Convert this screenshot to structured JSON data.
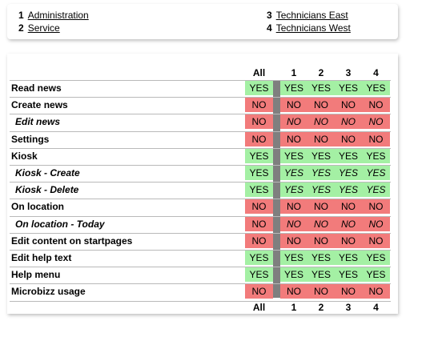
{
  "legend": [
    {
      "num": "1",
      "label": "Administration"
    },
    {
      "num": "2",
      "label": "Service"
    },
    {
      "num": "3",
      "label": "Technicians East"
    },
    {
      "num": "4",
      "label": "Technicians West"
    }
  ],
  "columns": [
    "All",
    "1",
    "2",
    "3",
    "4"
  ],
  "rows": [
    {
      "label": "Read news",
      "sub": false,
      "values": [
        "YES",
        "YES",
        "YES",
        "YES",
        "YES"
      ]
    },
    {
      "label": "Create news",
      "sub": false,
      "values": [
        "NO",
        "NO",
        "NO",
        "NO",
        "NO"
      ]
    },
    {
      "label": "Edit news",
      "sub": true,
      "values": [
        "NO",
        "NO",
        "NO",
        "NO",
        "NO"
      ]
    },
    {
      "label": "Settings",
      "sub": false,
      "values": [
        "NO",
        "NO",
        "NO",
        "NO",
        "NO"
      ]
    },
    {
      "label": "Kiosk",
      "sub": false,
      "values": [
        "YES",
        "YES",
        "YES",
        "YES",
        "YES"
      ]
    },
    {
      "label": "Kiosk - Create",
      "sub": true,
      "values": [
        "YES",
        "YES",
        "YES",
        "YES",
        "YES"
      ]
    },
    {
      "label": "Kiosk - Delete",
      "sub": true,
      "values": [
        "YES",
        "YES",
        "YES",
        "YES",
        "YES"
      ]
    },
    {
      "label": "On location",
      "sub": false,
      "values": [
        "NO",
        "NO",
        "NO",
        "NO",
        "NO"
      ]
    },
    {
      "label": "On location - Today",
      "sub": true,
      "values": [
        "NO",
        "NO",
        "NO",
        "NO",
        "NO"
      ]
    },
    {
      "label": "Edit content on startpages",
      "sub": false,
      "values": [
        "NO",
        "NO",
        "NO",
        "NO",
        "NO"
      ]
    },
    {
      "label": "Edit help text",
      "sub": false,
      "values": [
        "YES",
        "YES",
        "YES",
        "YES",
        "YES"
      ]
    },
    {
      "label": "Help menu",
      "sub": false,
      "values": [
        "YES",
        "YES",
        "YES",
        "YES",
        "YES"
      ]
    },
    {
      "label": "Microbizz usage",
      "sub": false,
      "values": [
        "NO",
        "NO",
        "NO",
        "NO",
        "NO"
      ]
    }
  ],
  "colors": {
    "yes": "#a4f0a4",
    "no": "#f27b7b",
    "separator": "#7f7f7f"
  }
}
